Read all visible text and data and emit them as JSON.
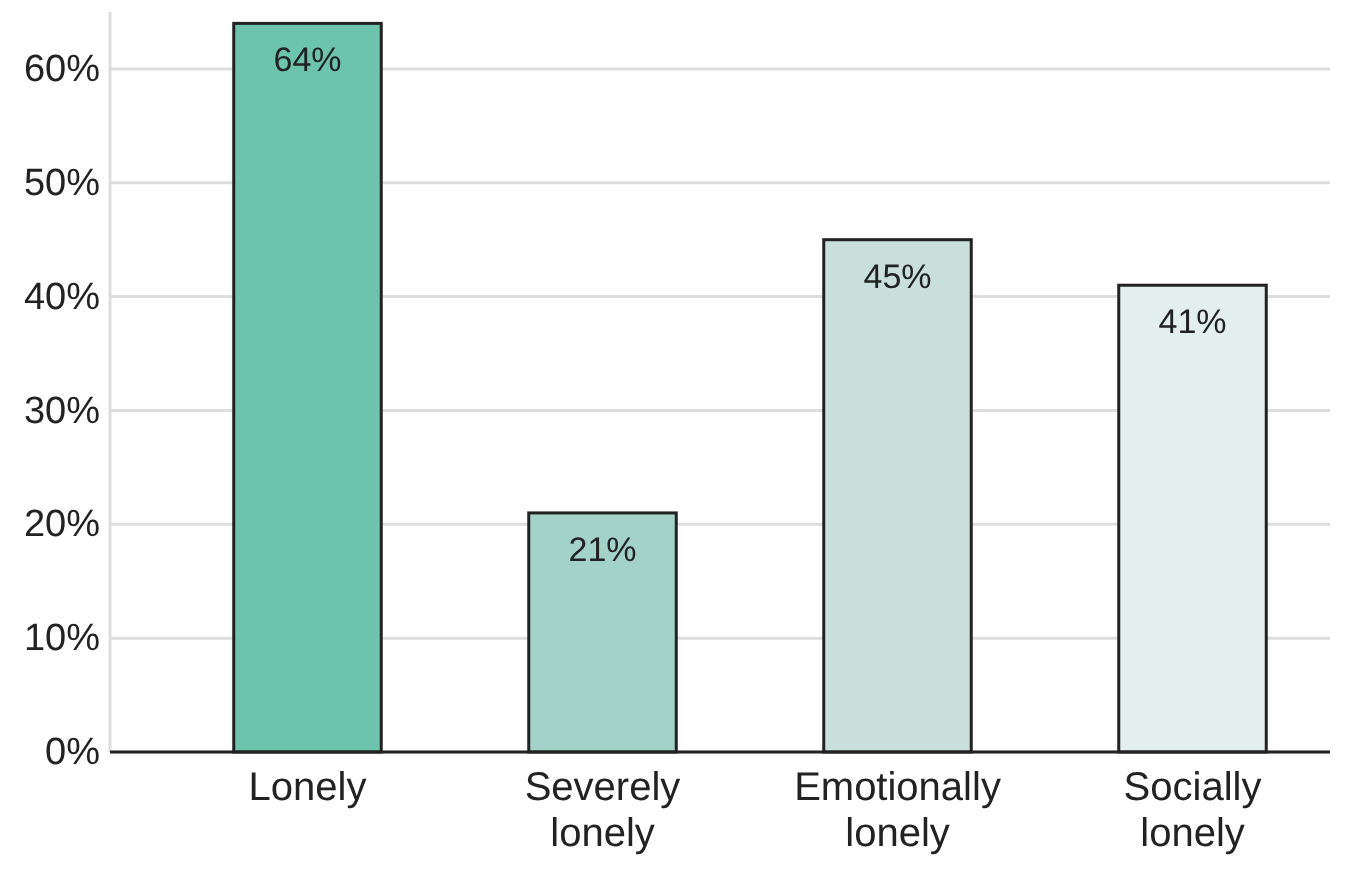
{
  "chart_data": {
    "type": "bar",
    "categories": [
      "Lonely",
      "Severely lonely",
      "Emotionally lonely",
      "Socially lonely"
    ],
    "values": [
      64,
      21,
      45,
      41
    ],
    "value_labels": [
      "64%",
      "21%",
      "45%",
      "41%"
    ],
    "colors": [
      "#6cc4ad",
      "#a3d2c8",
      "#c9dfdc",
      "#e3efec"
    ],
    "ylim": [
      0,
      65
    ],
    "yticks": [
      {
        "value": 0,
        "label": "0%"
      },
      {
        "value": 10,
        "label": "10%"
      },
      {
        "value": 20,
        "label": "20%"
      },
      {
        "value": 30,
        "label": "30%"
      },
      {
        "value": 40,
        "label": "40%"
      },
      {
        "value": 50,
        "label": "50%"
      },
      {
        "value": 60,
        "label": "60%"
      }
    ],
    "grid": "y"
  }
}
